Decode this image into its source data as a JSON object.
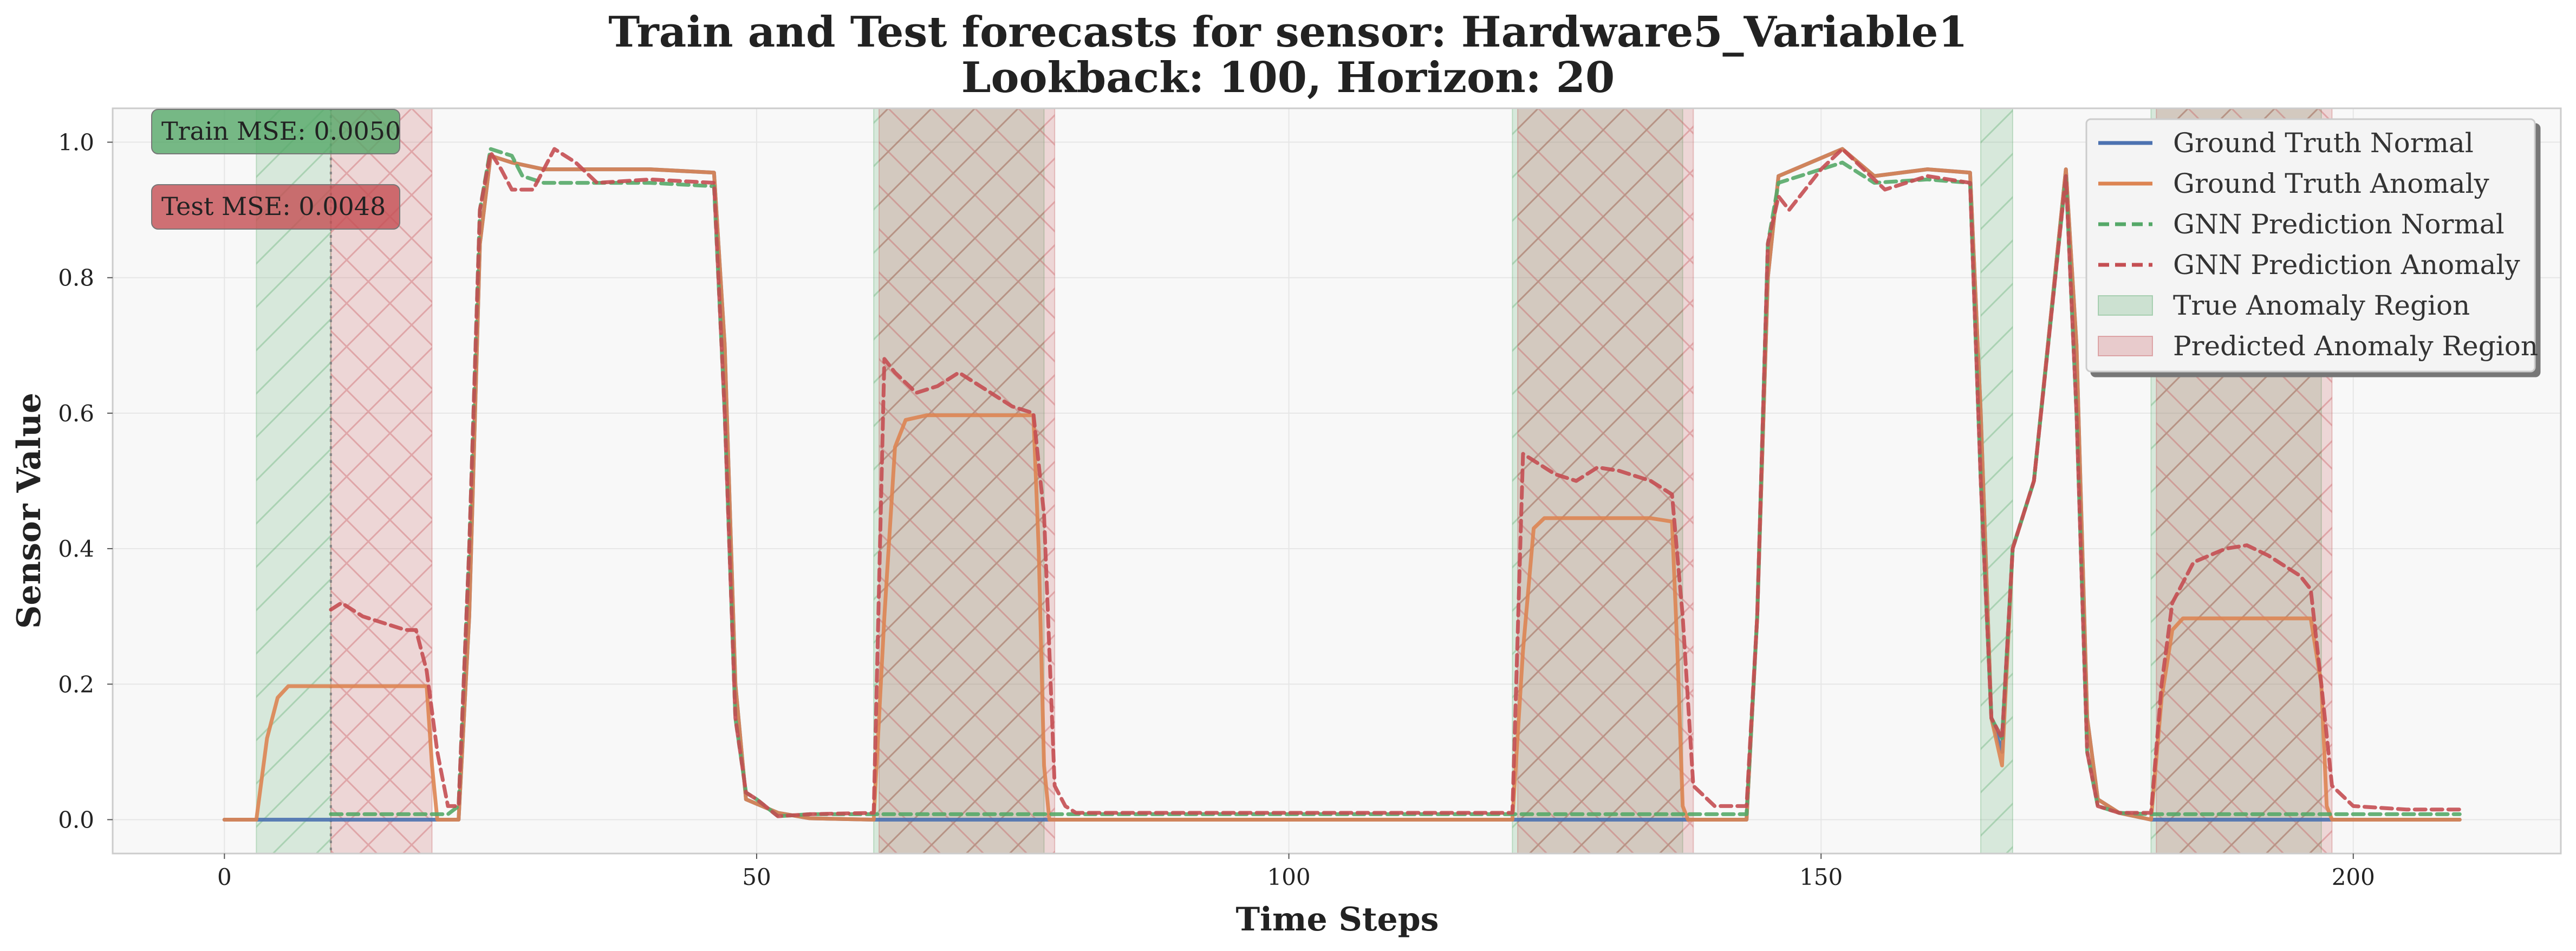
{
  "chart_data": {
    "type": "line",
    "title": "Train and Test forecasts for sensor: Hardware5_Variable1",
    "subtitle": "Lookback: 100, Horizon: 20",
    "xlabel": "Time Steps",
    "ylabel": "Sensor Value",
    "xlim": [
      -10.5,
      219.5
    ],
    "ylim": [
      -0.05,
      1.05
    ],
    "xticks": [
      0,
      50,
      100,
      150,
      200
    ],
    "yticks": [
      0.0,
      0.2,
      0.4,
      0.6,
      0.8,
      1.0
    ],
    "xtick_labels": [
      "0",
      "50",
      "100",
      "150",
      "200"
    ],
    "ytick_labels": [
      "0.0",
      "0.2",
      "0.4",
      "0.6",
      "0.8",
      "1.0"
    ],
    "grid": true,
    "legend_position": "top-right",
    "train_test_split": 10,
    "annotations": {
      "train_mse": "Train MSE: 0.0050",
      "test_mse": "Test MSE: 0.0048"
    },
    "colors": {
      "normal": "#4c72b0",
      "anomaly": "#dd8452",
      "pred_normal": "#55a868",
      "pred_anomaly": "#c44e52",
      "true_region": "#55a868",
      "pred_region": "#c44e52",
      "background": "#f8f8f8"
    },
    "true_anomaly_regions": [
      [
        3,
        10
      ],
      [
        61,
        77
      ],
      [
        121,
        137
      ],
      [
        165,
        168
      ],
      [
        181,
        197
      ]
    ],
    "predicted_anomaly_regions": [
      [
        10,
        19.5
      ],
      [
        61.5,
        78
      ],
      [
        121.5,
        138
      ],
      [
        181.5,
        198
      ]
    ],
    "series": [
      {
        "name": "Ground Truth Normal",
        "style": "solid",
        "points": [
          [
            0,
            0
          ],
          [
            22,
            0
          ],
          [
            23,
            0.3
          ],
          [
            24,
            0.85
          ],
          [
            25,
            0.98
          ],
          [
            27,
            0.97
          ],
          [
            30,
            0.96
          ],
          [
            40,
            0.96
          ],
          [
            46,
            0.955
          ],
          [
            47,
            0.7
          ],
          [
            48,
            0.2
          ],
          [
            49,
            0.03
          ],
          [
            52,
            0.01
          ],
          [
            55,
            0.002
          ],
          [
            61,
            0
          ],
          [
            143,
            0
          ],
          [
            144,
            0.3
          ],
          [
            145,
            0.8
          ],
          [
            146,
            0.95
          ],
          [
            152,
            0.99
          ],
          [
            155,
            0.95
          ],
          [
            160,
            0.96
          ],
          [
            164,
            0.955
          ],
          [
            165,
            0.6
          ],
          [
            166,
            0.15
          ],
          [
            167,
            0.1
          ],
          [
            168,
            0.4
          ],
          [
            170,
            0.5
          ],
          [
            173,
            0.96
          ],
          [
            174,
            0.7
          ],
          [
            175,
            0.15
          ],
          [
            176,
            0.03
          ],
          [
            178,
            0.01
          ],
          [
            181,
            0
          ],
          [
            210,
            0
          ]
        ]
      },
      {
        "name": "Ground Truth Anomaly",
        "style": "solid",
        "points": [
          [
            0,
            0
          ],
          [
            3,
            0
          ],
          [
            4,
            0.12
          ],
          [
            5,
            0.18
          ],
          [
            6,
            0.197
          ],
          [
            19,
            0.197
          ],
          [
            19.5,
            0.08
          ],
          [
            20,
            0
          ],
          [
            22,
            0
          ],
          [
            23,
            0.3
          ],
          [
            24,
            0.85
          ],
          [
            25,
            0.98
          ],
          [
            27,
            0.97
          ],
          [
            30,
            0.96
          ],
          [
            40,
            0.96
          ],
          [
            46,
            0.955
          ],
          [
            47,
            0.7
          ],
          [
            48,
            0.2
          ],
          [
            49,
            0.03
          ],
          [
            52,
            0.01
          ],
          [
            55,
            0.002
          ],
          [
            61,
            0
          ],
          [
            62,
            0.3
          ],
          [
            63,
            0.55
          ],
          [
            64,
            0.59
          ],
          [
            66,
            0.597
          ],
          [
            76,
            0.597
          ],
          [
            76.5,
            0.4
          ],
          [
            77,
            0.08
          ],
          [
            77.5,
            0
          ],
          [
            121,
            0
          ],
          [
            122,
            0.25
          ],
          [
            123,
            0.43
          ],
          [
            124,
            0.445
          ],
          [
            134,
            0.445
          ],
          [
            136,
            0.44
          ],
          [
            136.5,
            0.25
          ],
          [
            137,
            0.02
          ],
          [
            137.5,
            0
          ],
          [
            143,
            0
          ],
          [
            144,
            0.3
          ],
          [
            145,
            0.8
          ],
          [
            146,
            0.95
          ],
          [
            152,
            0.99
          ],
          [
            155,
            0.95
          ],
          [
            160,
            0.96
          ],
          [
            164,
            0.955
          ],
          [
            165,
            0.6
          ],
          [
            166,
            0.15
          ],
          [
            167,
            0.08
          ],
          [
            168,
            0.4
          ],
          [
            170,
            0.5
          ],
          [
            173,
            0.96
          ],
          [
            174,
            0.7
          ],
          [
            175,
            0.15
          ],
          [
            176,
            0.03
          ],
          [
            178,
            0.01
          ],
          [
            181,
            0
          ],
          [
            182,
            0.18
          ],
          [
            183,
            0.28
          ],
          [
            184,
            0.297
          ],
          [
            196,
            0.297
          ],
          [
            197,
            0.2
          ],
          [
            197.5,
            0.02
          ],
          [
            198,
            0
          ],
          [
            210,
            0
          ]
        ]
      },
      {
        "name": "GNN Prediction Normal",
        "style": "dashed",
        "points": [
          [
            10,
            0.008
          ],
          [
            21,
            0.008
          ],
          [
            22,
            0.02
          ],
          [
            23,
            0.4
          ],
          [
            24,
            0.9
          ],
          [
            25,
            0.99
          ],
          [
            27,
            0.98
          ],
          [
            28,
            0.95
          ],
          [
            30,
            0.94
          ],
          [
            35,
            0.94
          ],
          [
            40,
            0.94
          ],
          [
            46,
            0.935
          ],
          [
            47,
            0.6
          ],
          [
            48,
            0.15
          ],
          [
            49,
            0.04
          ],
          [
            50,
            0.03
          ],
          [
            52,
            0.005
          ],
          [
            55,
            0.008
          ],
          [
            61,
            0.008
          ],
          [
            143,
            0.008
          ],
          [
            144,
            0.3
          ],
          [
            145,
            0.85
          ],
          [
            146,
            0.94
          ],
          [
            152,
            0.97
          ],
          [
            155,
            0.94
          ],
          [
            160,
            0.945
          ],
          [
            164,
            0.94
          ],
          [
            165,
            0.5
          ],
          [
            166,
            0.15
          ],
          [
            167,
            0.12
          ],
          [
            168,
            0.4
          ],
          [
            170,
            0.5
          ],
          [
            173,
            0.95
          ],
          [
            174,
            0.6
          ],
          [
            175,
            0.1
          ],
          [
            176,
            0.02
          ],
          [
            178,
            0.01
          ],
          [
            181,
            0.008
          ],
          [
            210,
            0.008
          ]
        ]
      },
      {
        "name": "GNN Prediction Anomaly",
        "style": "dashed",
        "points": [
          [
            10,
            0.31
          ],
          [
            11,
            0.32
          ],
          [
            13,
            0.3
          ],
          [
            15,
            0.29
          ],
          [
            17,
            0.28
          ],
          [
            18,
            0.28
          ],
          [
            19,
            0.22
          ],
          [
            20,
            0.1
          ],
          [
            21,
            0.02
          ],
          [
            22,
            0.02
          ],
          [
            23,
            0.4
          ],
          [
            24,
            0.9
          ],
          [
            25,
            0.985
          ],
          [
            26,
            0.96
          ],
          [
            27,
            0.93
          ],
          [
            29,
            0.93
          ],
          [
            31,
            0.99
          ],
          [
            33,
            0.97
          ],
          [
            35,
            0.94
          ],
          [
            40,
            0.945
          ],
          [
            46,
            0.94
          ],
          [
            47,
            0.6
          ],
          [
            48,
            0.15
          ],
          [
            49,
            0.04
          ],
          [
            50,
            0.03
          ],
          [
            52,
            0.005
          ],
          [
            55,
            0.008
          ],
          [
            61,
            0.01
          ],
          [
            62,
            0.68
          ],
          [
            63,
            0.66
          ],
          [
            65,
            0.63
          ],
          [
            67,
            0.64
          ],
          [
            69,
            0.66
          ],
          [
            71,
            0.64
          ],
          [
            74,
            0.61
          ],
          [
            76,
            0.6
          ],
          [
            77,
            0.45
          ],
          [
            78,
            0.05
          ],
          [
            79,
            0.02
          ],
          [
            80,
            0.01
          ],
          [
            121,
            0.01
          ],
          [
            122,
            0.54
          ],
          [
            123,
            0.53
          ],
          [
            125,
            0.51
          ],
          [
            127,
            0.5
          ],
          [
            129,
            0.52
          ],
          [
            131,
            0.515
          ],
          [
            134,
            0.5
          ],
          [
            136,
            0.48
          ],
          [
            137,
            0.3
          ],
          [
            138,
            0.05
          ],
          [
            140,
            0.02
          ],
          [
            143,
            0.02
          ],
          [
            144,
            0.3
          ],
          [
            145,
            0.85
          ],
          [
            146,
            0.92
          ],
          [
            147,
            0.9
          ],
          [
            150,
            0.96
          ],
          [
            152,
            0.99
          ],
          [
            154,
            0.96
          ],
          [
            156,
            0.93
          ],
          [
            160,
            0.95
          ],
          [
            164,
            0.94
          ],
          [
            165,
            0.5
          ],
          [
            166,
            0.15
          ],
          [
            167,
            0.12
          ],
          [
            168,
            0.4
          ],
          [
            170,
            0.5
          ],
          [
            173,
            0.95
          ],
          [
            174,
            0.6
          ],
          [
            175,
            0.1
          ],
          [
            176,
            0.02
          ],
          [
            178,
            0.01
          ],
          [
            181,
            0.01
          ],
          [
            182,
            0.2
          ],
          [
            183,
            0.32
          ],
          [
            185,
            0.38
          ],
          [
            188,
            0.4
          ],
          [
            190,
            0.405
          ],
          [
            192,
            0.39
          ],
          [
            195,
            0.36
          ],
          [
            196,
            0.34
          ],
          [
            197,
            0.2
          ],
          [
            198,
            0.05
          ],
          [
            200,
            0.02
          ],
          [
            205,
            0.015
          ],
          [
            210,
            0.015
          ]
        ]
      }
    ]
  }
}
